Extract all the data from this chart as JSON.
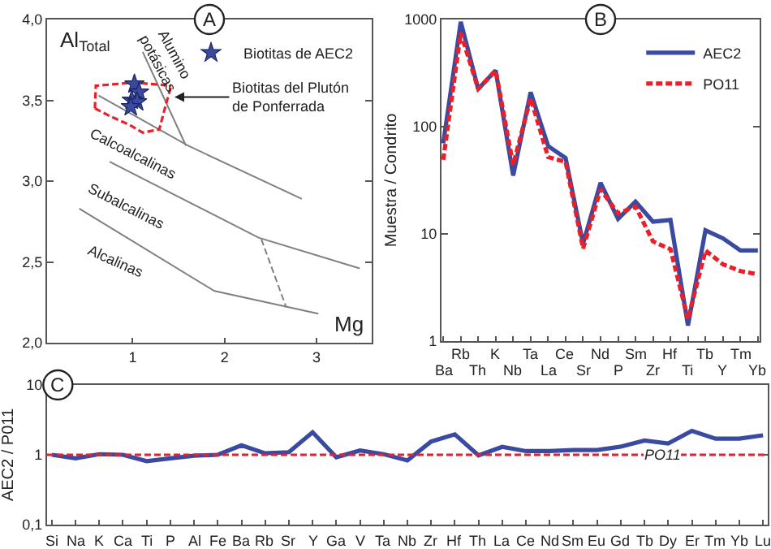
{
  "chart_data": [
    {
      "type": "scatter",
      "title": "A",
      "xlabel": "Mg",
      "ylabel": "Al$_{Total}$",
      "xlim": [
        0.07,
        3.6
      ],
      "xticks": [
        1,
        2,
        3
      ],
      "ylim": [
        2,
        4
      ],
      "yticks": [
        {
          "value": 2,
          "label": "2,0"
        },
        {
          "value": 2.5,
          "label": "2,5"
        },
        {
          "value": 3,
          "label": "3,0"
        },
        {
          "value": 3.5,
          "label": "3,5"
        },
        {
          "value": 4,
          "label": "4,0"
        }
      ],
      "legend": "top right",
      "annotations": [
        "Alumino\npotásicas",
        "Calcoalcalinas",
        "Subalcalinas",
        "Alcalinas",
        {
          "text": "Biotitas del Plutón\nde Ponferrada",
          "x": 1.42,
          "y": 3.52
        }
      ],
      "series": [
        {
          "type": "line",
          "color": "#808080",
          "line_style": "solid",
          "x": [
            0.63,
            1.6,
            2.84
          ],
          "values": [
            3.53,
            3.22,
            2.89
          ]
        },
        {
          "type": "line",
          "color": "#808080",
          "line_style": "solid",
          "x": [
            1.11,
            1.58
          ],
          "values": [
            3.8,
            3.22
          ]
        },
        {
          "type": "line",
          "color": "#808080",
          "line_style": "solid",
          "x": [
            0.75,
            2.37,
            3.47
          ],
          "values": [
            3.12,
            2.65,
            2.46
          ]
        },
        {
          "type": "line",
          "color": "#808080",
          "line_style": "solid",
          "x": [
            0.42,
            1.89,
            3.02
          ],
          "values": [
            2.83,
            2.32,
            2.18
          ]
        },
        {
          "type": "line",
          "color": "#808080",
          "line_style": "dashed",
          "x": [
            2.4,
            2.67
          ],
          "values": [
            2.64,
            2.22
          ]
        },
        {
          "type": "line",
          "color": "#e8202a",
          "line_style": "dashed",
          "x": [
            0.59,
            0.6,
            1.02,
            1.42
          ],
          "values": [
            3.45,
            3.59,
            3.61,
            3.59
          ]
        },
        {
          "type": "line",
          "color": "#e8202a",
          "line_style": "dashed",
          "x": [
            0.59,
            0.76,
            0.96,
            1.11,
            1.29,
            1.37,
            1.42
          ],
          "values": [
            3.45,
            3.4,
            3.35,
            3.3,
            3.32,
            3.49,
            3.59
          ]
        },
        {
          "type": "scatter",
          "name": "Biotitas de AEC2",
          "color": "#3a4aa0",
          "marker": "star",
          "x": [
            1.02,
            1.07,
            0.99,
            1.05,
            0.98
          ],
          "values": [
            3.6,
            3.55,
            3.5,
            3.49,
            3.46
          ]
        }
      ]
    },
    {
      "type": "line",
      "title": "B",
      "ylabel": "Muestra / Condrito",
      "log": true,
      "ylim": [
        1,
        1000
      ],
      "yticks": [
        1,
        10,
        100,
        1000
      ],
      "legend": "top right",
      "categories": [
        "Ba",
        "Rb",
        "Th",
        "K",
        "Nb",
        "Ta",
        "La",
        "Ce",
        "Sr",
        "Nd",
        "P",
        "Sm",
        "Zr",
        "Hf",
        "Ti",
        "Tb",
        "Y",
        "Tm",
        "Yb"
      ],
      "series": [
        {
          "name": "AEC2",
          "color": "#3a4aa0",
          "line_style": "solid",
          "values": [
            70,
            950,
            225,
            335,
            35,
            210,
            66,
            51,
            8.1,
            30,
            13.8,
            20,
            13,
            13.5,
            1.4,
            10.8,
            9.1,
            7,
            7
          ]
        },
        {
          "name": "PO11",
          "color": "#e8202a",
          "line_style": "dashed",
          "values": [
            49,
            750,
            225,
            335,
            44,
            185,
            52,
            47,
            7.3,
            26,
            15.5,
            18,
            8.5,
            7.2,
            1.6,
            7,
            5.2,
            4.5,
            4.2
          ]
        }
      ]
    },
    {
      "type": "line",
      "title": "C",
      "ylabel": "AEC2 / P011",
      "log": true,
      "ylim": [
        0.1,
        10
      ],
      "yticks": [
        {
          "value": 0.1,
          "label": "0,1"
        },
        1,
        10
      ],
      "categories": [
        "Si",
        "Na",
        "K",
        "Ca",
        "Ti",
        "P",
        "Al",
        "Fe",
        "Ba",
        "Rb",
        "Sr",
        "Y",
        "Ga",
        "V",
        "Ta",
        "Nb",
        "Zr",
        "Hf",
        "Th",
        "La",
        "Ce",
        "Nd",
        "Sm",
        "Eu",
        "Gd",
        "Tb",
        "Dy",
        "Er",
        "Tm",
        "Yb",
        "Lu"
      ],
      "ref_lines": [
        {
          "axis": "y",
          "value": 1,
          "label": "PO11",
          "color": "#e8202a",
          "line_style": "dashed"
        }
      ],
      "series": [
        {
          "color": "#3a4aa0",
          "line_style": "solid",
          "values": [
            1,
            0.89,
            1.02,
            1,
            0.81,
            0.89,
            0.97,
            1,
            1.37,
            1.05,
            1.09,
            2.1,
            0.92,
            1.15,
            1.02,
            0.83,
            1.55,
            1.96,
            0.98,
            1.3,
            1.13,
            1.13,
            1.17,
            1.17,
            1.31,
            1.6,
            1.45,
            2.2,
            1.7,
            1.7,
            1.9
          ]
        }
      ]
    }
  ]
}
